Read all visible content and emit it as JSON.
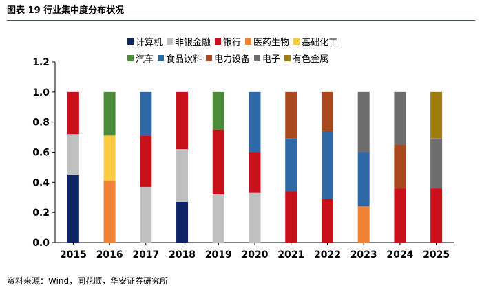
{
  "header": {
    "title": "图表 19 行业集中度分布状况"
  },
  "footer": {
    "source": "资料来源：Wind，同花顺，华安证券研究所"
  },
  "chart_data": {
    "type": "bar",
    "stacked": true,
    "categories": [
      "2015",
      "2016",
      "2017",
      "2018",
      "2019",
      "2020",
      "2021",
      "2022",
      "2023",
      "2024",
      "2025"
    ],
    "ylim": [
      0,
      1.2
    ],
    "yticks": [
      "0.0",
      "0.2",
      "0.4",
      "0.6",
      "0.8",
      "1.0",
      "1.2"
    ],
    "legend_rows": [
      [
        "计算机",
        "非银金融",
        "银行",
        "医药生物",
        "基础化工"
      ],
      [
        "汽车",
        "食品饮料",
        "电力设备",
        "电子",
        "有色金属"
      ]
    ],
    "colors": {
      "计算机": "#0d2566",
      "非银金融": "#c0c0c0",
      "银行": "#c8101a",
      "医药生物": "#f08135",
      "基础化工": "#fccb42",
      "汽车": "#4b8b3a",
      "食品饮料": "#2f68a6",
      "电力设备": "#a8481c",
      "电子": "#6d6d6d",
      "有色金属": "#9f7d0c"
    },
    "stacks": [
      [
        {
          "name": "计算机",
          "value": 0.45
        },
        {
          "name": "非银金融",
          "value": 0.27
        },
        {
          "name": "银行",
          "value": 0.28
        }
      ],
      [
        {
          "name": "医药生物",
          "value": 0.41
        },
        {
          "name": "基础化工",
          "value": 0.3
        },
        {
          "name": "汽车",
          "value": 0.29
        }
      ],
      [
        {
          "name": "非银金融",
          "value": 0.37
        },
        {
          "name": "银行",
          "value": 0.34
        },
        {
          "name": "食品饮料",
          "value": 0.29
        }
      ],
      [
        {
          "name": "计算机",
          "value": 0.27
        },
        {
          "name": "非银金融",
          "value": 0.35
        },
        {
          "name": "银行",
          "value": 0.38
        }
      ],
      [
        {
          "name": "非银金融",
          "value": 0.32
        },
        {
          "name": "银行",
          "value": 0.43
        },
        {
          "name": "汽车",
          "value": 0.25
        }
      ],
      [
        {
          "name": "非银金融",
          "value": 0.33
        },
        {
          "name": "银行",
          "value": 0.27
        },
        {
          "name": "食品饮料",
          "value": 0.4
        }
      ],
      [
        {
          "name": "银行",
          "value": 0.34
        },
        {
          "name": "食品饮料",
          "value": 0.35
        },
        {
          "name": "电力设备",
          "value": 0.31
        }
      ],
      [
        {
          "name": "银行",
          "value": 0.29
        },
        {
          "name": "食品饮料",
          "value": 0.45
        },
        {
          "name": "电力设备",
          "value": 0.26
        }
      ],
      [
        {
          "name": "医药生物",
          "value": 0.24
        },
        {
          "name": "食品饮料",
          "value": 0.36
        },
        {
          "name": "电子",
          "value": 0.4
        }
      ],
      [
        {
          "name": "银行",
          "value": 0.36
        },
        {
          "name": "电力设备",
          "value": 0.29
        },
        {
          "name": "电子",
          "value": 0.35
        }
      ],
      [
        {
          "name": "银行",
          "value": 0.36
        },
        {
          "name": "电子",
          "value": 0.33
        },
        {
          "name": "有色金属",
          "value": 0.31
        }
      ]
    ]
  }
}
